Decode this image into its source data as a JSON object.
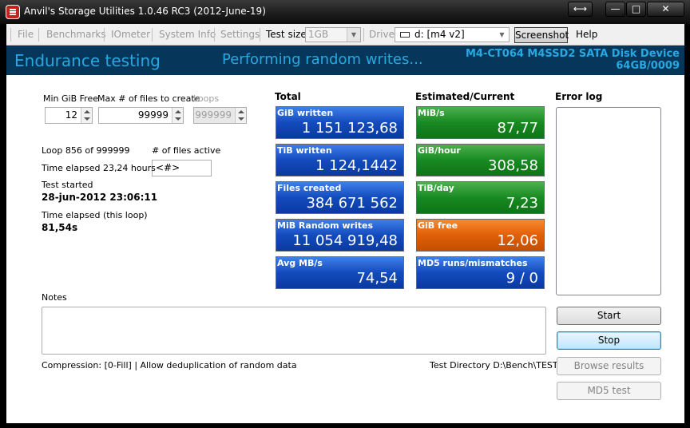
{
  "window": {
    "title": "Anvil's Storage Utilities 1.0.46 RC3 (2012-June-19)",
    "controls": {
      "resize": "⟷",
      "minimize": "—",
      "maximize": "□",
      "close": "✕"
    }
  },
  "menu": {
    "file": "File",
    "benchmarks": "Benchmarks",
    "iometer": "IOmeter",
    "system_info": "System Info",
    "settings": "Settings",
    "test_size_label": "Test size",
    "test_size_value": "1GB",
    "drive_label": "Drive",
    "drive_value": "d: [m4 v2]",
    "screenshot": "Screenshot",
    "help": "Help"
  },
  "header": {
    "title": "Endurance testing",
    "status": "Performing random writes...",
    "device_line1": "M4-CT064 M4SSD2 SATA Disk Device",
    "device_line2": "64GB/0009",
    "color": "#28a7e0"
  },
  "params": {
    "min_gib_free_label": "Min GiB Free",
    "min_gib_free_value": "12",
    "max_files_label": "Max # of files to create",
    "max_files_value": "99999",
    "loops_label": "Loops",
    "loops_value": "999999"
  },
  "progress": {
    "loop": "Loop 856 of 999999",
    "files_active_label": "# of files active",
    "files_active_value": "<#>",
    "time_elapsed": "Time elapsed 23,24 hours",
    "test_started_label": "Test started",
    "test_started_value": "28-jun-2012 23:06:11",
    "loop_elapsed_label": "Time elapsed (this loop)",
    "loop_elapsed_value": "81,54s"
  },
  "totals": {
    "heading": "Total",
    "tiles": [
      {
        "label": "GiB written",
        "value": "1 151 123,68"
      },
      {
        "label": "TiB written",
        "value": "1 124,1442"
      },
      {
        "label": "Files created",
        "value": "384 671 562"
      },
      {
        "label": "MiB Random writes",
        "value": "11 054 919,48"
      },
      {
        "label": "Avg MB/s",
        "value": "74,54"
      }
    ]
  },
  "current": {
    "heading": "Estimated/Current",
    "tiles": [
      {
        "label": "MiB/s",
        "value": "87,77",
        "color": "green"
      },
      {
        "label": "GiB/hour",
        "value": "308,58",
        "color": "green"
      },
      {
        "label": "TiB/day",
        "value": "7,23",
        "color": "green"
      },
      {
        "label": "GiB free",
        "value": "12,06",
        "color": "orange"
      },
      {
        "label": "MD5 runs/mismatches",
        "value": "9 / 0",
        "color": "blue"
      }
    ]
  },
  "error_log": {
    "heading": "Error log"
  },
  "notes": {
    "label": "Notes",
    "value": ""
  },
  "footer": {
    "compression": "Compression: [0-Fill]  |  Allow deduplication of random data",
    "test_directory": "Test Directory D:\\Bench\\TEST"
  },
  "buttons": {
    "start": "Start",
    "stop": "Stop",
    "browse": "Browse results",
    "md5": "MD5 test"
  }
}
